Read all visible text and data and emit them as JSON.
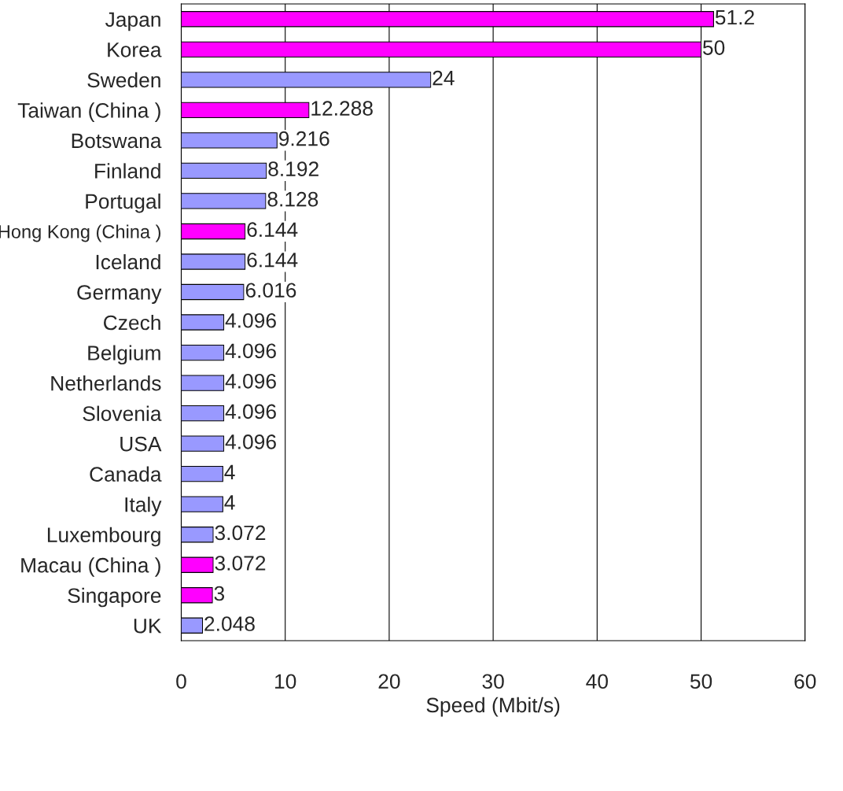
{
  "chart_data": {
    "type": "bar",
    "orientation": "horizontal",
    "xlabel": "Speed (Mbit/s)",
    "categories": [
      "Japan",
      "Korea",
      "Sweden",
      "Taiwan (China )",
      "Botswana",
      "Finland",
      "Portugal",
      "Hong Kong (China )",
      "Iceland",
      "Germany",
      "Czech",
      "Belgium",
      "Netherlands",
      "Slovenia",
      "USA",
      "Canada",
      "Italy",
      "Luxembourg",
      "Macau (China )",
      "Singapore",
      "UK"
    ],
    "values": [
      51.2,
      50,
      24,
      12.288,
      9.216,
      8.192,
      8.128,
      6.144,
      6.144,
      6.016,
      4.096,
      4.096,
      4.096,
      4.096,
      4.096,
      4,
      4,
      3.072,
      3.072,
      3,
      2.048
    ],
    "colors": [
      "#ff00ff",
      "#ff00ff",
      "#9999ff",
      "#ff00ff",
      "#9999ff",
      "#9999ff",
      "#9999ff",
      "#ff00ff",
      "#9999ff",
      "#9999ff",
      "#9999ff",
      "#9999ff",
      "#9999ff",
      "#9999ff",
      "#9999ff",
      "#9999ff",
      "#9999ff",
      "#9999ff",
      "#ff00ff",
      "#ff00ff",
      "#9999ff"
    ],
    "xlim": [
      0,
      60
    ],
    "xticks": [
      0,
      10,
      20,
      30,
      40,
      50,
      60
    ],
    "grid": "x",
    "data_labels": true
  }
}
